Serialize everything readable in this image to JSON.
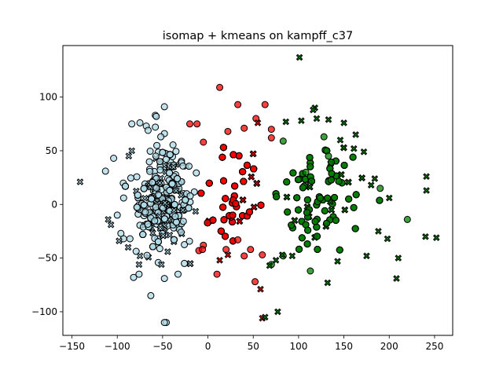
{
  "chart_data": {
    "type": "scatter",
    "title": "isomap + kmeans on kampff_c37",
    "xlabel": "",
    "ylabel": "",
    "xlim": [
      -160,
      270
    ],
    "ylim": [
      -122,
      148
    ],
    "xticks": [
      -150,
      -100,
      -50,
      0,
      50,
      100,
      150,
      200,
      250
    ],
    "yticks": [
      -100,
      -50,
      0,
      50,
      100
    ],
    "grid": false,
    "legend": "none",
    "markers": {
      "circle": "o",
      "cross": "X"
    },
    "series": [
      {
        "color": "#add8e6",
        "x_range": [
          -115,
          -10
        ],
        "center": [
          -48,
          5
        ],
        "spread": [
          17,
          26
        ],
        "circles": [
          [
            -48,
            91
          ],
          [
            -58,
            83
          ],
          [
            -57,
            82
          ],
          [
            -75,
            76
          ],
          [
            -68,
            73
          ],
          [
            -84,
            75
          ],
          [
            -58,
            72
          ],
          [
            -48,
            66
          ],
          [
            -52,
            63
          ],
          [
            -66,
            69
          ],
          [
            -113,
            31
          ],
          [
            -104,
            43
          ],
          [
            -93,
            6
          ],
          [
            -100,
            -10
          ],
          [
            -93,
            -32
          ],
          [
            -96,
            -27
          ],
          [
            -86,
            -32
          ],
          [
            -82,
            -68
          ],
          [
            -76,
            -65
          ],
          [
            -63,
            -85
          ],
          [
            -48,
            -69
          ],
          [
            -33,
            -65
          ],
          [
            -26,
            -55
          ],
          [
            -46,
            -110
          ],
          [
            -48,
            -110
          ]
        ],
        "crosses": [
          [
            -141,
            21
          ],
          [
            -110,
            -14
          ],
          [
            -107,
            -19
          ],
          [
            -98,
            -34
          ],
          [
            -84,
            50
          ],
          [
            -88,
            -40
          ],
          [
            -75,
            -48
          ],
          [
            -76,
            -56
          ]
        ],
        "dense_count": 620
      },
      {
        "color": "#ff0000",
        "x_range": [
          -15,
          68
        ],
        "center": [
          27,
          7
        ],
        "spread": [
          20,
          24
        ],
        "circles": [
          [
            13,
            109
          ],
          [
            33,
            93
          ],
          [
            63,
            93
          ],
          [
            -20,
            75
          ],
          [
            -12,
            75
          ],
          [
            22,
            68
          ],
          [
            40,
            71
          ],
          [
            53,
            80
          ],
          [
            70,
            70
          ],
          [
            70,
            62
          ],
          [
            -5,
            58
          ],
          [
            10,
            -65
          ],
          [
            33,
            -33
          ],
          [
            47,
            -42
          ],
          [
            52,
            -72
          ],
          [
            -10,
            -43
          ],
          [
            -5,
            -38
          ],
          [
            20,
            -42
          ],
          [
            40,
            -48
          ],
          [
            60,
            -47
          ],
          [
            -6,
            -42
          ]
        ],
        "crosses": [
          [
            55,
            76
          ],
          [
            58,
            -79
          ],
          [
            60,
            -106
          ],
          [
            13,
            -52
          ],
          [
            22,
            -47
          ]
        ],
        "dense_count": 560
      },
      {
        "color": "#008000",
        "x_range": [
          65,
          255
        ],
        "center": [
          120,
          6
        ],
        "spread": [
          26,
          28
        ],
        "circles": [
          [
            83,
            59
          ],
          [
            128,
            63
          ],
          [
            133,
            45
          ],
          [
            108,
            30
          ],
          [
            113,
            -62
          ],
          [
            83,
            -48
          ],
          [
            70,
            -56
          ],
          [
            220,
            -14
          ],
          [
            190,
            15
          ]
        ],
        "crosses": [
          [
            101,
            137
          ],
          [
            118,
            90
          ],
          [
            116,
            88
          ],
          [
            103,
            78
          ],
          [
            86,
            77
          ],
          [
            120,
            80
          ],
          [
            133,
            79
          ],
          [
            150,
            76
          ],
          [
            163,
            65
          ],
          [
            146,
            60
          ],
          [
            161,
            52
          ],
          [
            172,
            49
          ],
          [
            241,
            26
          ],
          [
            241,
            13
          ],
          [
            188,
            -25
          ],
          [
            198,
            -32
          ],
          [
            210,
            -50
          ],
          [
            240,
            -30
          ],
          [
            252,
            -31
          ],
          [
            208,
            -69
          ],
          [
            143,
            -53
          ],
          [
            132,
            -73
          ],
          [
            63,
            -105
          ],
          [
            77,
            -100
          ],
          [
            93,
            -48
          ],
          [
            68,
            -57
          ],
          [
            75,
            -52
          ],
          [
            82,
            -47
          ],
          [
            175,
            -48
          ],
          [
            180,
            18
          ],
          [
            184,
            24
          ],
          [
            200,
            6
          ]
        ],
        "dense_count": 480
      }
    ]
  }
}
